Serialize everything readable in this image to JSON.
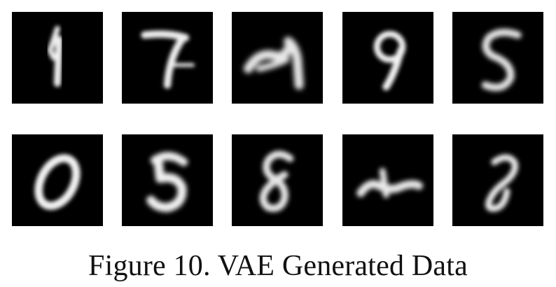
{
  "caption": "Figure 10. VAE Generated Data",
  "samples": [
    {
      "digit_glyph": "4"
    },
    {
      "digit_glyph": "7"
    },
    {
      "digit_glyph": "4"
    },
    {
      "digit_glyph": "9"
    },
    {
      "digit_glyph": "5"
    },
    {
      "digit_glyph": "0"
    },
    {
      "digit_glyph": "5"
    },
    {
      "digit_glyph": "8"
    },
    {
      "digit_glyph": "4"
    },
    {
      "digit_glyph": "8"
    }
  ],
  "colors": {
    "tile_background": "#000000",
    "stroke": "#f2f2f2",
    "caption_text": "#111111"
  }
}
